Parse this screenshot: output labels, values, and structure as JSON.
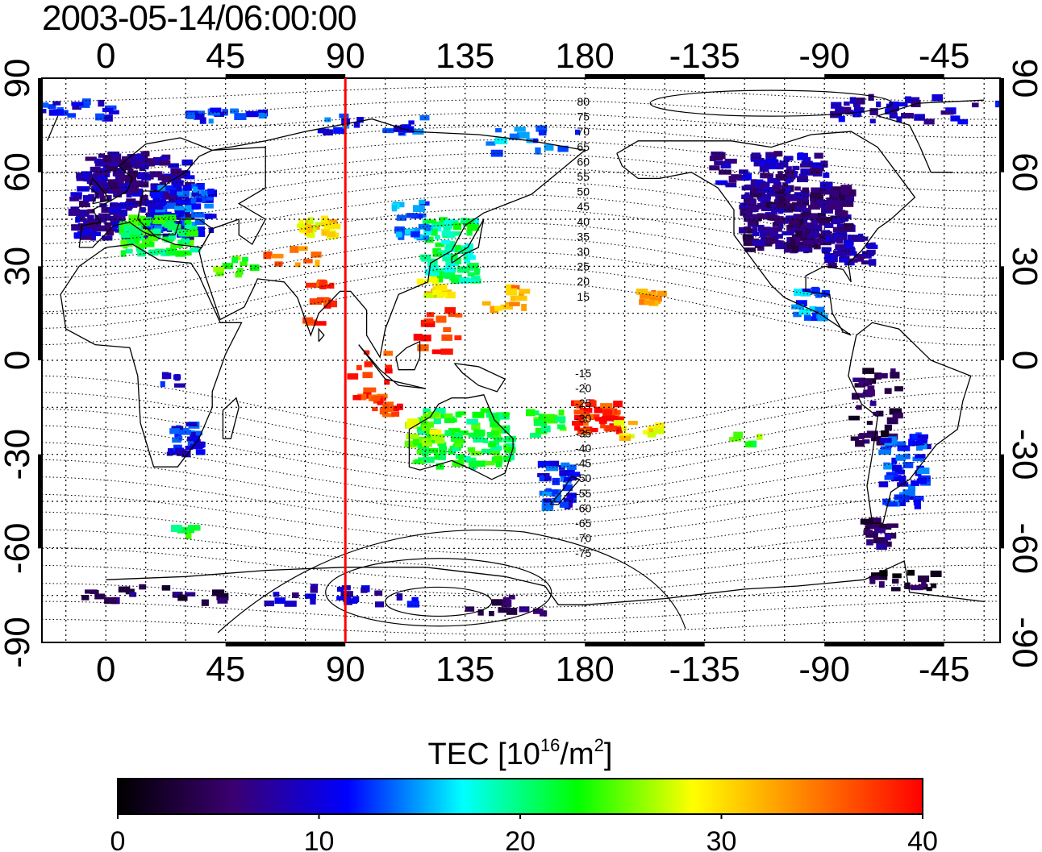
{
  "title": "2003-05-14/06:00:00",
  "map": {
    "top_lon_labels": [
      "0",
      "45",
      "90",
      "135",
      "180",
      "-135",
      "-90",
      "-45"
    ],
    "bottom_lon_labels": [
      "0",
      "45",
      "90",
      "135",
      "180",
      "-135",
      "-90",
      "-45"
    ],
    "left_lat_labels": [
      "90",
      "60",
      "30",
      "0",
      "-30",
      "-60",
      "-90"
    ],
    "right_lat_labels": [
      "90",
      "60",
      "30",
      "0",
      "-30",
      "-60",
      "-90"
    ],
    "contour_labels_north": [
      "80",
      "75",
      "70",
      "65",
      "60",
      "55",
      "50",
      "45",
      "40",
      "35",
      "30",
      "25",
      "20",
      "15"
    ],
    "contour_labels_south": [
      "-15",
      "-20",
      "-25",
      "-30",
      "-35",
      "-40",
      "-45",
      "-50",
      "-55",
      "-60",
      "-65",
      "-70",
      "-75"
    ],
    "marker_line_lon": 90,
    "marker_line_color": "#ff0000"
  },
  "colorbar": {
    "label_main": "TEC  [10",
    "label_sup1": "16",
    "label_mid": "/m",
    "label_sup2": "2",
    "label_end": "]",
    "ticks": [
      "0",
      "10",
      "20",
      "30",
      "40"
    ],
    "colors": [
      "#000000",
      "#3a0070",
      "#0000ff",
      "#00ffff",
      "#00ff00",
      "#ffff00",
      "#ff8000",
      "#ff0000"
    ]
  }
}
